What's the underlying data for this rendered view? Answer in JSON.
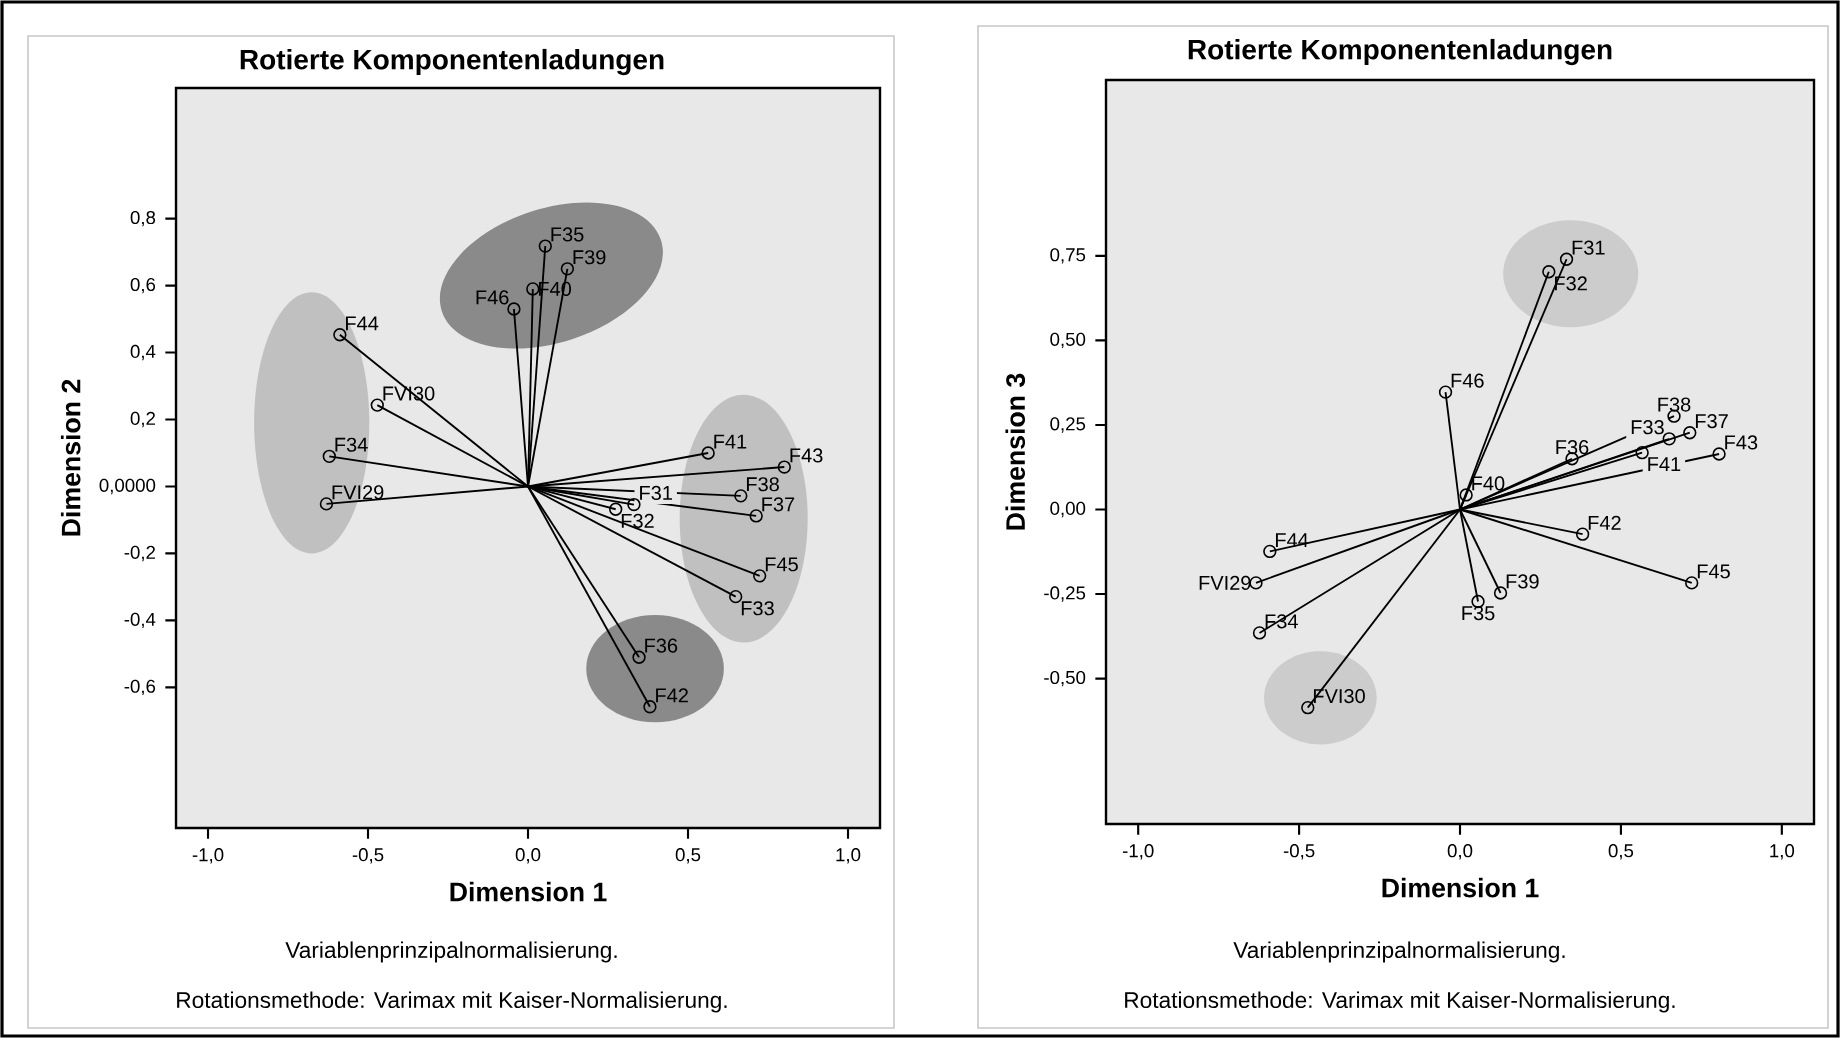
{
  "chart_data": [
    {
      "type": "lollipop",
      "title": "Rotierte Komponentenladungen",
      "xlabel": "Dimension 1",
      "ylabel": "Dimension 2",
      "marker": "circle",
      "xlim": [
        -1.1,
        1.1
      ],
      "ylim": [
        -1.02,
        1.19
      ],
      "xticks": [
        {
          "value": -1.0,
          "label": "-1,0"
        },
        {
          "value": -0.5,
          "label": "-0,5"
        },
        {
          "value": 0.0,
          "label": "0,0"
        },
        {
          "value": 0.5,
          "label": "0,5"
        },
        {
          "value": 1.0,
          "label": "1,0"
        }
      ],
      "yticks": [
        {
          "value": -0.6,
          "label": "-0,6"
        },
        {
          "value": -0.4,
          "label": "-0,4"
        },
        {
          "value": -0.2,
          "label": "-0,2"
        },
        {
          "value": 0.0,
          "label": "0,0000"
        },
        {
          "value": 0.2,
          "label": "0,2"
        },
        {
          "value": 0.4,
          "label": "0,4"
        },
        {
          "value": 0.6,
          "label": "0,6"
        },
        {
          "value": 0.8,
          "label": "0,8"
        }
      ],
      "series": [
        {
          "color": "#000000",
          "x": [
            0.054,
            0.123,
            -0.044,
            0.015,
            -0.588,
            -0.471,
            -0.621,
            -0.63,
            0.563,
            0.801,
            0.665,
            0.713,
            0.331,
            0.274,
            0.724,
            0.649,
            0.347,
            0.381
          ],
          "values": [
            0.718,
            0.65,
            0.53,
            0.59,
            0.453,
            0.243,
            0.09,
            -0.052,
            0.1,
            0.058,
            -0.028,
            -0.088,
            -0.054,
            -0.068,
            -0.267,
            -0.329,
            -0.51,
            -0.658
          ]
        }
      ],
      "annotations": [
        {
          "text": "F35",
          "x": 0.054,
          "y": 0.718
        },
        {
          "text": "F39",
          "x": 0.123,
          "y": 0.65
        },
        {
          "text": "F46",
          "x": -0.044,
          "y": 0.53
        },
        {
          "text": "F40",
          "x": 0.015,
          "y": 0.59
        },
        {
          "text": "F44",
          "x": -0.588,
          "y": 0.453
        },
        {
          "text": "FVI30",
          "x": -0.471,
          "y": 0.243
        },
        {
          "text": "F34",
          "x": -0.621,
          "y": 0.09
        },
        {
          "text": "FVI29",
          "x": -0.63,
          "y": -0.052
        },
        {
          "text": "F41",
          "x": 0.563,
          "y": 0.1
        },
        {
          "text": "F43",
          "x": 0.801,
          "y": 0.058
        },
        {
          "text": "F38",
          "x": 0.665,
          "y": -0.028
        },
        {
          "text": "F37",
          "x": 0.713,
          "y": -0.088
        },
        {
          "text": "F31",
          "x": 0.331,
          "y": -0.054
        },
        {
          "text": "F32",
          "x": 0.274,
          "y": -0.068
        },
        {
          "text": "F45",
          "x": 0.724,
          "y": -0.267
        },
        {
          "text": "F33",
          "x": 0.649,
          "y": -0.329
        },
        {
          "text": "F36",
          "x": 0.347,
          "y": -0.51
        },
        {
          "text": "F42",
          "x": 0.381,
          "y": -0.658
        },
        "Variablenprinzipalnormalisierung.",
        "Rotationsmethode: Varimax mit Kaiser-Normalisierung."
      ]
    },
    {
      "type": "lollipop",
      "title": "Rotierte Komponentenladungen",
      "xlabel": "Dimension 1",
      "ylabel": "Dimension 3",
      "marker": "circle",
      "xlim": [
        -1.1,
        1.1
      ],
      "ylim": [
        -0.93,
        1.27
      ],
      "xticks": [
        {
          "value": -1.0,
          "label": "-1,0"
        },
        {
          "value": -0.5,
          "label": "-0,5"
        },
        {
          "value": 0.0,
          "label": "0,0"
        },
        {
          "value": 0.5,
          "label": "0,5"
        },
        {
          "value": 1.0,
          "label": "1,0"
        }
      ],
      "yticks": [
        {
          "value": -0.5,
          "label": "-0,50"
        },
        {
          "value": -0.25,
          "label": "-0,25"
        },
        {
          "value": 0.0,
          "label": "0,00"
        },
        {
          "value": 0.25,
          "label": "0,25"
        },
        {
          "value": 0.5,
          "label": "0,50"
        },
        {
          "value": 0.75,
          "label": "0,75"
        }
      ],
      "series": [
        {
          "color": "#000000",
          "x": [
            0.331,
            0.276,
            -0.045,
            0.019,
            0.665,
            0.714,
            0.65,
            0.566,
            0.348,
            0.805,
            0.381,
            0.72,
            0.126,
            0.056,
            -0.591,
            -0.634,
            -0.623,
            -0.473
          ],
          "values": [
            0.74,
            0.703,
            0.347,
            0.043,
            0.276,
            0.227,
            0.209,
            0.168,
            0.15,
            0.164,
            -0.073,
            -0.217,
            -0.247,
            -0.272,
            -0.124,
            -0.217,
            -0.365,
            -0.586
          ]
        }
      ],
      "annotations": [
        {
          "text": "F31",
          "x": 0.331,
          "y": 0.74
        },
        {
          "text": "F32",
          "x": 0.276,
          "y": 0.703
        },
        {
          "text": "F46",
          "x": -0.045,
          "y": 0.347
        },
        {
          "text": "F40",
          "x": 0.019,
          "y": 0.043
        },
        {
          "text": "F38",
          "x": 0.665,
          "y": 0.276
        },
        {
          "text": "F37",
          "x": 0.714,
          "y": 0.227
        },
        {
          "text": "F33",
          "x": 0.65,
          "y": 0.209
        },
        {
          "text": "F41",
          "x": 0.566,
          "y": 0.168
        },
        {
          "text": "F36",
          "x": 0.348,
          "y": 0.15
        },
        {
          "text": "F43",
          "x": 0.805,
          "y": 0.164
        },
        {
          "text": "F42",
          "x": 0.381,
          "y": -0.073
        },
        {
          "text": "F45",
          "x": 0.72,
          "y": -0.217
        },
        {
          "text": "F39",
          "x": 0.126,
          "y": -0.247
        },
        {
          "text": "F35",
          "x": 0.056,
          "y": -0.272
        },
        {
          "text": "F44",
          "x": -0.591,
          "y": -0.124
        },
        {
          "text": "FVI29",
          "x": -0.634,
          "y": -0.217
        },
        {
          "text": "F34",
          "x": -0.623,
          "y": -0.365
        },
        {
          "text": "FVI30",
          "x": -0.473,
          "y": -0.586
        },
        "Variablenprinzipalnormalisierung.",
        "Rotationsmethode: Varimax mit Kaiser-Normalisierung."
      ]
    }
  ]
}
